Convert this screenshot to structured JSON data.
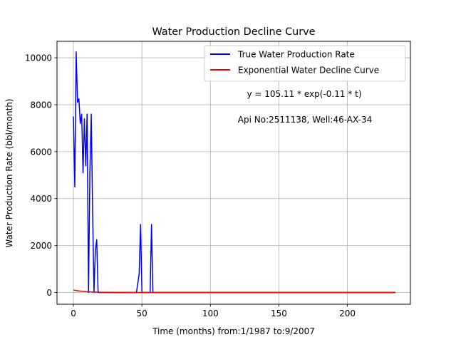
{
  "chart_data": {
    "type": "line",
    "title": "Water Production Decline Curve",
    "xlabel": "Time (months) from:1/1987 to:9/2007",
    "ylabel": "Water Production Rate (bbl/month)",
    "xlim": [
      -12,
      246
    ],
    "ylim": [
      -500,
      10700
    ],
    "xticks": [
      0,
      50,
      100,
      150,
      200
    ],
    "yticks": [
      0,
      2000,
      4000,
      6000,
      8000,
      10000
    ],
    "grid": true,
    "legend_position": "top-right",
    "series": [
      {
        "name": "True Water Production Rate",
        "color": "#0000ff",
        "x": [
          0,
          1,
          2,
          3,
          4,
          5,
          6,
          7,
          8,
          9,
          10,
          11,
          12,
          13,
          14,
          15,
          16,
          17,
          18,
          19,
          20,
          21,
          22,
          46,
          48,
          49,
          50,
          51,
          52,
          53,
          54,
          55,
          56,
          57,
          58,
          59,
          60,
          61,
          100,
          150,
          200,
          235
        ],
        "y": [
          7500,
          4500,
          10250,
          8100,
          8250,
          7200,
          7600,
          5100,
          7400,
          5400,
          7600,
          0,
          5100,
          7600,
          3500,
          0,
          1800,
          2250,
          0,
          0,
          0,
          0,
          0,
          0,
          800,
          2900,
          0,
          0,
          0,
          0,
          0,
          0,
          0,
          2900,
          0,
          0,
          0,
          0,
          0,
          0,
          0,
          0
        ]
      },
      {
        "name": "Exponential Water Decline Curve",
        "color": "#ff0000",
        "x": [
          0,
          2,
          4,
          6,
          8,
          10,
          12,
          15,
          20,
          30,
          40,
          60,
          100,
          150,
          200,
          235
        ],
        "y": [
          105.11,
          84.0,
          67.6,
          54.3,
          43.6,
          35.1,
          28.2,
          20.2,
          11.6,
          3.9,
          1.3,
          0.1,
          0,
          0,
          0,
          0
        ]
      }
    ],
    "annotations": [
      "y = 105.11 * exp(-0.11 * t)",
      "Api No:2511138, Well:46-AX-34"
    ]
  }
}
